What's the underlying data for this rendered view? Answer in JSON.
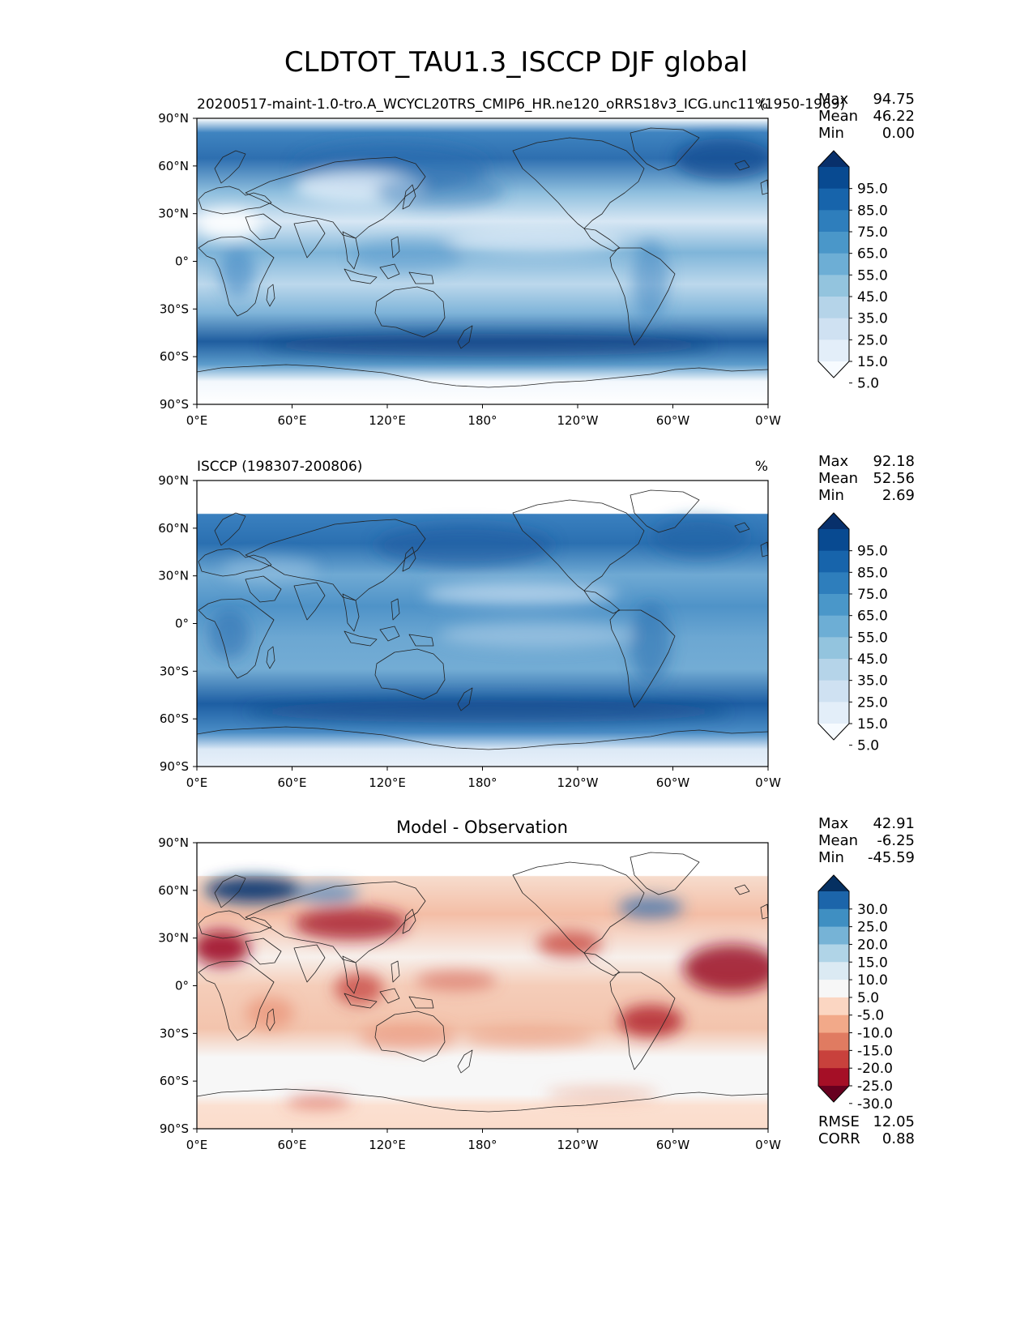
{
  "title": "CLDTOT_TAU1.3_ISCCP DJF global",
  "axes": {
    "lat_ticks": [
      "90°N",
      "60°N",
      "30°N",
      "0°",
      "30°S",
      "60°S",
      "90°S"
    ],
    "lon_ticks": [
      "0°E",
      "60°E",
      "120°E",
      "180°",
      "120°W",
      "60°W",
      "0°W"
    ]
  },
  "panels": [
    {
      "left_title": "20200517-maint-1.0-tro.A_WCYCL20TRS_CMIP6_HR.ne120_oRRS18v3_ICG.unc11 (1950-1969)",
      "center_title": "",
      "units": "%",
      "stats": [
        {
          "label": "Max",
          "value": "94.75"
        },
        {
          "label": "Mean",
          "value": "46.22"
        },
        {
          "label": "Min",
          "value": "0.00"
        }
      ],
      "colorbar": {
        "labels": [
          "95.0",
          "85.0",
          "75.0",
          "65.0",
          "55.0",
          "45.0",
          "35.0",
          "25.0",
          "15.0",
          "5.0"
        ],
        "colors": [
          "#f7fbff",
          "#e3eef9",
          "#cfe1f2",
          "#b5d4e9",
          "#93c4de",
          "#6daed5",
          "#4a97c9",
          "#2e7ebc",
          "#1764ab",
          "#084a91",
          "#08306b"
        ]
      },
      "extra_stats": []
    },
    {
      "left_title": "ISCCP (198307-200806)",
      "center_title": "",
      "units": "%",
      "stats": [
        {
          "label": "Max",
          "value": "92.18"
        },
        {
          "label": "Mean",
          "value": "52.56"
        },
        {
          "label": "Min",
          "value": "2.69"
        }
      ],
      "colorbar": {
        "labels": [
          "95.0",
          "85.0",
          "75.0",
          "65.0",
          "55.0",
          "45.0",
          "35.0",
          "25.0",
          "15.0",
          "5.0"
        ],
        "colors": [
          "#f7fbff",
          "#e3eef9",
          "#cfe1f2",
          "#b5d4e9",
          "#93c4de",
          "#6daed5",
          "#4a97c9",
          "#2e7ebc",
          "#1764ab",
          "#084a91",
          "#08306b"
        ]
      },
      "extra_stats": []
    },
    {
      "left_title": "",
      "center_title": "Model - Observation",
      "units": "",
      "stats": [
        {
          "label": "Max",
          "value": "42.91"
        },
        {
          "label": "Mean",
          "value": "-6.25"
        },
        {
          "label": "Min",
          "value": "-45.59"
        }
      ],
      "colorbar": {
        "labels": [
          "30.0",
          "25.0",
          "20.0",
          "15.0",
          "10.0",
          "5.0",
          "-5.0",
          "-10.0",
          "-15.0",
          "-20.0",
          "-25.0",
          "-30.0"
        ],
        "colors": [
          "#67001f",
          "#a50f26",
          "#c8413c",
          "#e07b61",
          "#f2a989",
          "#fbd6c2",
          "#f7f7f7",
          "#dbeaf3",
          "#b0d4e7",
          "#76b3d6",
          "#3f8fc2",
          "#1c65aa",
          "#053061"
        ]
      },
      "extra_stats": [
        {
          "label": "RMSE",
          "value": "12.05"
        },
        {
          "label": "CORR",
          "value": "0.88"
        }
      ]
    }
  ]
}
